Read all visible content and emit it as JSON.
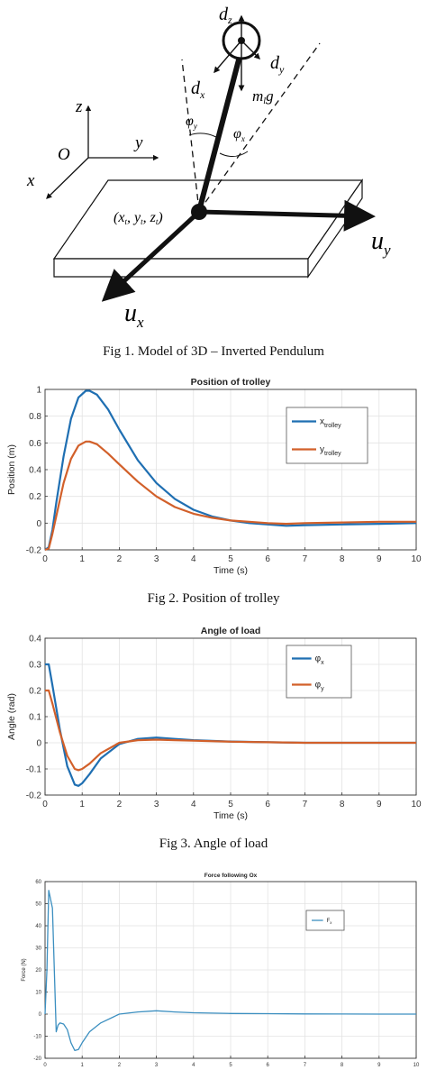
{
  "figure1": {
    "caption": "Fig 1. Model of 3D – Inverted Pendulum",
    "labels": {
      "dz": "d",
      "dz_sub": "z",
      "dy": "d",
      "dy_sub": "y",
      "dx": "d",
      "dx_sub": "x",
      "mg": "m",
      "mg_sub": "l",
      "mg_g": "g",
      "phi_y": "φ",
      "phi_y_sub": "y",
      "phi_x": "φ",
      "phi_x_sub": "x",
      "z": "z",
      "y": "y",
      "x": "x",
      "O": "O",
      "trolley_pos": "(x",
      "trolley_pos_t1": "t",
      "trolley_pos_mid1": ", y",
      "trolley_pos_t2": "t",
      "trolley_pos_mid2": ", z",
      "trolley_pos_t3": "t",
      "trolley_pos_end": ")",
      "uy": "u",
      "uy_sub": "y",
      "ux": "u",
      "ux_sub": "x"
    }
  },
  "figure2": {
    "caption": "Fig 2. Position of trolley"
  },
  "figure3": {
    "caption": "Fig 3. Angle of load"
  },
  "chart_data": [
    {
      "type": "line",
      "title": "Position of trolley",
      "xlabel": "Time (s)",
      "ylabel": "Position (m)",
      "xlim": [
        0,
        10
      ],
      "ylim": [
        -0.2,
        1
      ],
      "xticks": [
        0,
        1,
        2,
        3,
        4,
        5,
        6,
        7,
        8,
        9,
        10
      ],
      "yticks": [
        -0.2,
        0,
        0.2,
        0.4,
        0.6,
        0.8,
        1
      ],
      "grid": true,
      "legend": "top-right",
      "series": [
        {
          "name": "x",
          "name_sub": "trolley",
          "color": "#1f6fb2",
          "x": [
            0,
            0.1,
            0.2,
            0.3,
            0.5,
            0.7,
            0.9,
            1.1,
            1.2,
            1.4,
            1.7,
            2,
            2.5,
            3,
            3.5,
            4,
            4.5,
            5,
            5.5,
            6,
            6.5,
            7,
            8,
            9,
            10
          ],
          "y": [
            -0.2,
            -0.18,
            -0.05,
            0.15,
            0.5,
            0.78,
            0.94,
            0.99,
            0.99,
            0.96,
            0.85,
            0.7,
            0.47,
            0.3,
            0.18,
            0.1,
            0.05,
            0.02,
            0.0,
            -0.01,
            -0.02,
            -0.015,
            -0.01,
            -0.005,
            0
          ]
        },
        {
          "name": "y",
          "name_sub": "trolley",
          "color": "#d2602a",
          "x": [
            0,
            0.1,
            0.2,
            0.3,
            0.5,
            0.7,
            0.9,
            1.1,
            1.2,
            1.4,
            1.7,
            2,
            2.5,
            3,
            3.5,
            4,
            4.5,
            5,
            5.5,
            6,
            6.5,
            7,
            8,
            9,
            10
          ],
          "y": [
            -0.2,
            -0.19,
            -0.08,
            0.05,
            0.3,
            0.48,
            0.58,
            0.61,
            0.61,
            0.59,
            0.52,
            0.44,
            0.31,
            0.2,
            0.12,
            0.07,
            0.04,
            0.02,
            0.01,
            0.0,
            -0.005,
            0.0,
            0.005,
            0.01,
            0.01
          ]
        }
      ]
    },
    {
      "type": "line",
      "title": "Angle of load",
      "xlabel": "Time (s)",
      "ylabel": "Angle (rad)",
      "xlim": [
        0,
        10
      ],
      "ylim": [
        -0.2,
        0.4
      ],
      "xticks": [
        0,
        1,
        2,
        3,
        4,
        5,
        6,
        7,
        8,
        9,
        10
      ],
      "yticks": [
        -0.2,
        -0.1,
        0,
        0.1,
        0.2,
        0.3,
        0.4
      ],
      "grid": true,
      "legend": "top-right",
      "series": [
        {
          "name": "φ",
          "name_sub": "x",
          "color": "#1f6fb2",
          "x": [
            0,
            0.1,
            0.2,
            0.4,
            0.6,
            0.8,
            0.9,
            1.0,
            1.2,
            1.5,
            2,
            2.5,
            3,
            3.5,
            4,
            5,
            6,
            7,
            8,
            10
          ],
          "y": [
            0.3,
            0.3,
            0.22,
            0.05,
            -0.09,
            -0.16,
            -0.165,
            -0.155,
            -0.12,
            -0.06,
            -0.005,
            0.015,
            0.02,
            0.015,
            0.01,
            0.005,
            0.002,
            0.0,
            0.0,
            0.0
          ]
        },
        {
          "name": "φ",
          "name_sub": "y",
          "color": "#d2602a",
          "x": [
            0,
            0.1,
            0.2,
            0.4,
            0.6,
            0.8,
            0.9,
            1.0,
            1.2,
            1.5,
            2,
            2.5,
            3,
            3.5,
            4,
            5,
            6,
            7,
            8,
            10
          ],
          "y": [
            0.2,
            0.2,
            0.15,
            0.04,
            -0.05,
            -0.1,
            -0.105,
            -0.1,
            -0.08,
            -0.04,
            0.0,
            0.01,
            0.012,
            0.01,
            0.008,
            0.004,
            0.002,
            0.0,
            0.0,
            0.0
          ]
        }
      ]
    },
    {
      "type": "line",
      "title": "Force following Ox",
      "xlabel": "Time (s)",
      "ylabel": "Force (N)",
      "xlim": [
        0,
        10
      ],
      "ylim": [
        -20,
        60
      ],
      "xticks": [
        0,
        1,
        2,
        3,
        4,
        5,
        6,
        7,
        8,
        9,
        10
      ],
      "yticks": [
        -20,
        -10,
        0,
        10,
        20,
        30,
        40,
        50,
        60
      ],
      "grid": true,
      "legend": "top-right",
      "series": [
        {
          "name": "F",
          "name_sub": "x",
          "color": "#3c8fc0",
          "x": [
            0,
            0.05,
            0.1,
            0.2,
            0.3,
            0.35,
            0.4,
            0.5,
            0.6,
            0.7,
            0.8,
            0.9,
            1.0,
            1.2,
            1.5,
            2,
            2.5,
            3,
            3.5,
            4,
            5,
            6,
            7,
            8,
            9,
            10
          ],
          "y": [
            0,
            20,
            56,
            48,
            -8,
            -5,
            -4,
            -4.5,
            -7,
            -13,
            -16.5,
            -16,
            -13,
            -8,
            -4,
            0,
            1,
            1.5,
            1,
            0.6,
            0.3,
            0.2,
            0.1,
            0.05,
            0,
            0
          ]
        }
      ]
    }
  ]
}
